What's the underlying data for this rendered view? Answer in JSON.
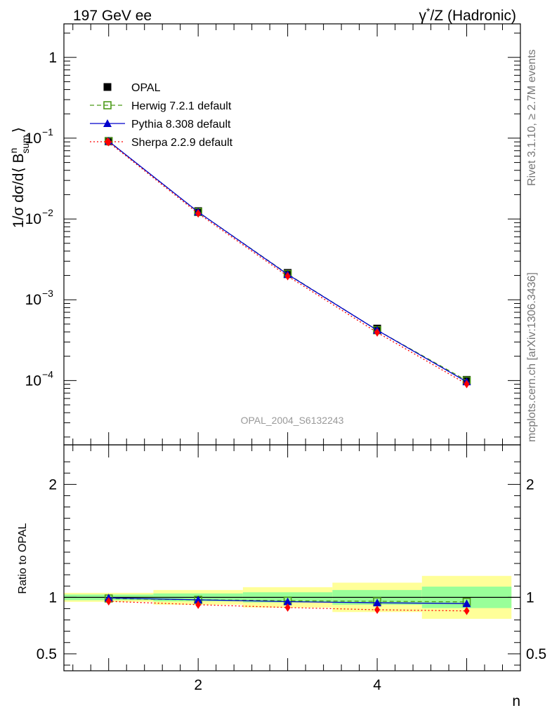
{
  "header": {
    "left": "197 GeV ee",
    "right_prefix": "γ",
    "right_sup": "*",
    "right_suffix": "/Z (Hadronic)"
  },
  "side_labels": {
    "rivet": "Rivet 3.1.10, ≥ 2.7M events",
    "mcplots": "mcplots.cern.ch [arXiv:1306.3436]"
  },
  "analysis_id": "OPAL_2004_S6132243",
  "chart_data": [
    {
      "type": "line",
      "yscale": "log",
      "ylabel": "1/σ dσ/d⟨ B^n_sum ⟩",
      "ylabel_parts": {
        "main": "1/σ dσ/d⟨ B",
        "sup": "n",
        "sub": "sum",
        "close": "⟩"
      },
      "xlim": [
        0.5,
        5.6
      ],
      "ylim": [
        1.6e-05,
        2.6
      ],
      "y_ticks": [
        {
          "base": "1",
          "exp": ""
        },
        {
          "base": "10",
          "exp": "−1"
        },
        {
          "base": "10",
          "exp": "−2"
        },
        {
          "base": "10",
          "exp": "−3"
        },
        {
          "base": "10",
          "exp": "−4"
        }
      ],
      "legend_position": "top-left",
      "series": [
        {
          "name": "OPAL",
          "x": [
            1,
            2,
            3,
            4,
            5
          ],
          "y": [
            0.0925,
            0.0125,
            0.00215,
            0.00044,
            0.000102
          ],
          "color": "#000000",
          "marker": "square-filled",
          "line": "none"
        },
        {
          "name": "Herwig 7.2.1 default",
          "x": [
            1,
            2,
            3,
            4,
            5
          ],
          "y": [
            0.0915,
            0.0122,
            0.00208,
            0.00042,
            0.0001
          ],
          "color": "#4b9a18",
          "marker": "square-open",
          "line": "dashed"
        },
        {
          "name": "Pythia 8.308 default",
          "x": [
            1,
            2,
            3,
            4,
            5
          ],
          "y": [
            0.0918,
            0.0122,
            0.00206,
            0.00042,
            9.65e-05
          ],
          "color": "#0000cc",
          "marker": "triangle",
          "line": "solid"
        },
        {
          "name": "Sherpa 2.2.9 default",
          "x": [
            1,
            2,
            3,
            4,
            5
          ],
          "y": [
            0.0893,
            0.0117,
            0.00196,
            0.000393,
            9.05e-05
          ],
          "color": "#ff0000",
          "marker": "diamond",
          "line": "dotted"
        }
      ]
    },
    {
      "type": "line",
      "ylabel": "Ratio to OPAL",
      "xlabel": "n",
      "xlim": [
        0.5,
        5.6
      ],
      "ylim": [
        0.35,
        2.35
      ],
      "x_ticks": [
        "2",
        "4"
      ],
      "x_tick_values": [
        2,
        4
      ],
      "y_ticks": [
        "0.5",
        "1",
        "2"
      ],
      "y_tick_values": [
        0.5,
        1,
        2
      ],
      "bands": [
        {
          "x0": 0.5,
          "x1": 1.5,
          "inner": [
            0.975,
            1.025
          ],
          "outer": [
            0.96,
            1.04
          ]
        },
        {
          "x0": 1.5,
          "x1": 2.5,
          "inner": [
            0.965,
            1.035
          ],
          "outer": [
            0.935,
            1.065
          ]
        },
        {
          "x0": 2.5,
          "x1": 3.5,
          "inner": [
            0.955,
            1.045
          ],
          "outer": [
            0.91,
            1.09
          ]
        },
        {
          "x0": 3.5,
          "x1": 4.5,
          "inner": [
            0.935,
            1.065
          ],
          "outer": [
            0.87,
            1.13
          ]
        },
        {
          "x0": 4.5,
          "x1": 5.5,
          "inner": [
            0.905,
            1.095
          ],
          "outer": [
            0.81,
            1.19
          ]
        }
      ],
      "band_colors": {
        "inner": "#99ff99",
        "outer": "#ffff99"
      },
      "series": [
        {
          "name": "Herwig 7.2.1 default",
          "x": [
            1,
            2,
            3,
            4,
            5
          ],
          "y": [
            0.99,
            0.978,
            0.97,
            0.965,
            0.96
          ],
          "color": "#4b9a18",
          "marker": "square-open",
          "line": "dashed"
        },
        {
          "name": "Pythia 8.308 default",
          "x": [
            1,
            2,
            3,
            4,
            5
          ],
          "y": [
            0.995,
            0.978,
            0.962,
            0.952,
            0.945
          ],
          "color": "#0000cc",
          "marker": "triangle",
          "line": "solid"
        },
        {
          "name": "Sherpa 2.2.9 default",
          "x": [
            1,
            2,
            3,
            4,
            5
          ],
          "y": [
            0.965,
            0.935,
            0.91,
            0.89,
            0.88
          ],
          "color": "#ff0000",
          "marker": "diamond",
          "line": "dotted"
        }
      ]
    }
  ]
}
